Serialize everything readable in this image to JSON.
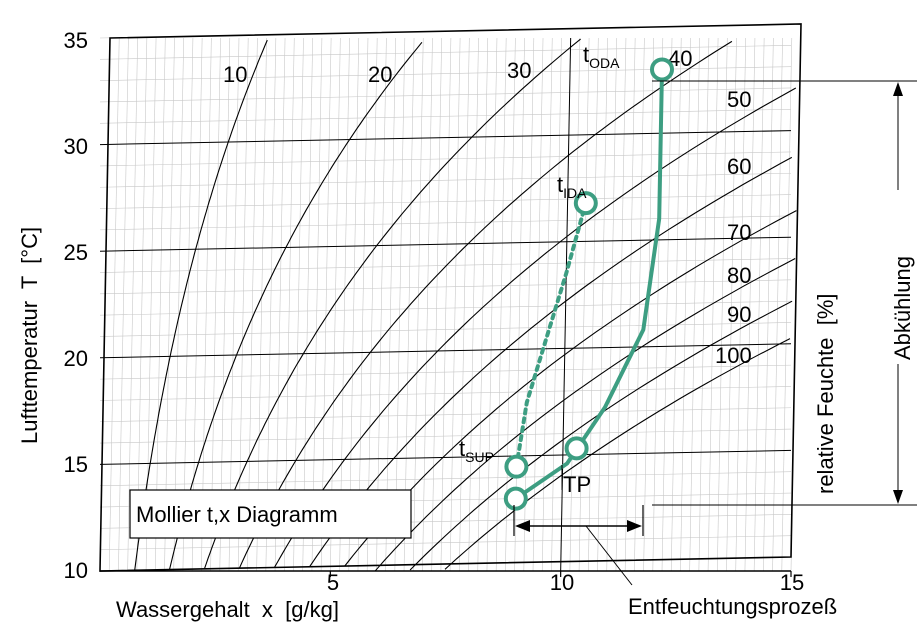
{
  "chart_data": {
    "type": "line",
    "title": "Mollier t,x Diagramm",
    "xlabel": "Wassergehalt  x  [g/kg]",
    "ylabel": "Lufttemperatur  T  [°C]",
    "right_label": "relative Feuchte  [%]",
    "xlim": [
      0,
      15
    ],
    "ylim": [
      10,
      35
    ],
    "x_ticks": [
      "5",
      "10",
      "15"
    ],
    "y_ticks": [
      "10",
      "15",
      "20",
      "25",
      "30",
      "35"
    ],
    "origin_label": "10",
    "grid": true,
    "rh_label_values": [
      "10",
      "20",
      "30",
      "40",
      "50",
      "60",
      "70",
      "80",
      "90",
      "100"
    ],
    "rh_curves_percent": [
      10,
      20,
      30,
      40,
      50,
      60,
      70,
      80,
      90,
      100
    ],
    "process_points": [
      {
        "name": "tODA",
        "label_main": "t",
        "label_sub": "ODA",
        "x": 12,
        "y": 33
      },
      {
        "name": "tIDA",
        "label_main": "t",
        "label_sub": "IDA",
        "x": 10.4,
        "y": 26.8
      },
      {
        "name": "TP",
        "label_main": "TP",
        "label_sub": "",
        "x": 10.3,
        "y": 15.3
      },
      {
        "name": "tSUP",
        "label_main": "t",
        "label_sub": "SUP",
        "x": 9,
        "y": 14.5
      },
      {
        "name": "end",
        "label_main": "",
        "label_sub": "",
        "x": 9,
        "y": 13
      }
    ],
    "cooling_path": [
      [
        12,
        33
      ],
      [
        12,
        26
      ],
      [
        11.7,
        20.8
      ],
      [
        10.9,
        17.2
      ],
      [
        10.1,
        14.6
      ],
      [
        9,
        13
      ]
    ],
    "mixing_path": [
      [
        9,
        14.5
      ],
      [
        9.2,
        17.5
      ],
      [
        9.6,
        20.5
      ],
      [
        10,
        23.5
      ],
      [
        10.4,
        26.8
      ]
    ],
    "annotations": {
      "cooling": "Abkühlung",
      "dehumidification": "Entfeuchtungsprozeß"
    },
    "colors": {
      "process": "#3d9e82",
      "line": "#000000",
      "grid": "#c8c8c8"
    }
  }
}
